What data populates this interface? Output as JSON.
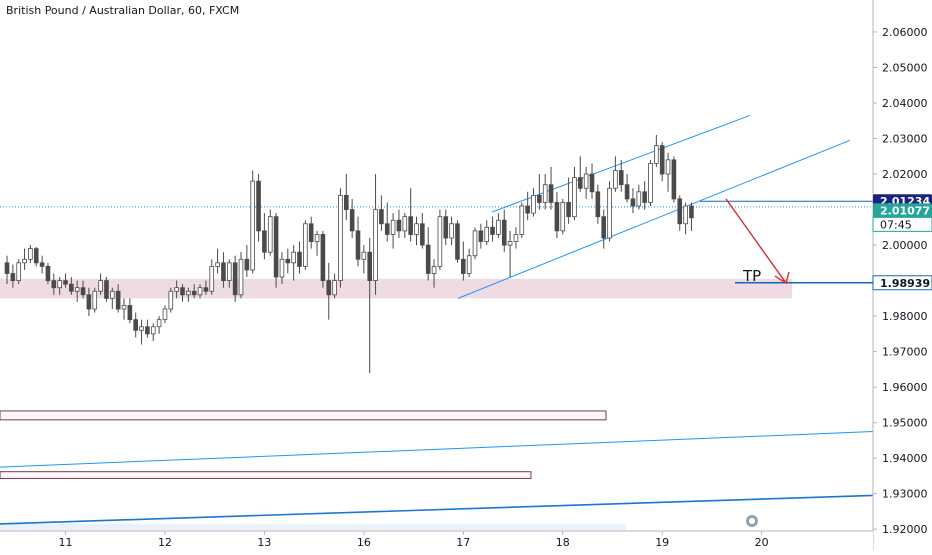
{
  "header": {
    "title": "British Pound / Australian Dollar, 60, FXCM"
  },
  "colors": {
    "up": "#26a69a",
    "down": "#ef5350",
    "candle_body": "#4a4a4a",
    "channel": "#2196f3",
    "support_zone": "#ecd5df",
    "pink_box_border": "#7a3a52",
    "arrow": "#d32f2f",
    "current_line": "#1e88e5",
    "tp_line": "#1565c0",
    "grid": "#eeeeee"
  },
  "labels": {
    "tp_text": "TP",
    "current_price": "2.01234",
    "bid_price": "2.01077",
    "countdown": "07:45",
    "tp_price": "1.98939"
  },
  "chart_data": {
    "type": "candlestick",
    "title": "British Pound / Australian Dollar, 60, FXCM",
    "symbol": "GBPAUD",
    "interval": "60",
    "ylim": [
      1.9195,
      2.069
    ],
    "y_ticks": [
      "2.06000",
      "2.05000",
      "2.04000",
      "2.03000",
      "2.02000",
      "2.01000",
      "2.00000",
      "1.99000",
      "1.98000",
      "1.97000",
      "1.96000",
      "1.95000",
      "1.94000",
      "1.93000",
      "1.92000"
    ],
    "x_ticks": [
      "11",
      "12",
      "13",
      "16",
      "17",
      "18",
      "19",
      "20"
    ],
    "x_tick_index": [
      10,
      27,
      44,
      61,
      78,
      95,
      112,
      129
    ],
    "ohlc": [
      [
        1.995,
        1.997,
        1.989,
        1.992
      ],
      [
        1.992,
        1.9945,
        1.988,
        1.99
      ],
      [
        1.99,
        1.996,
        1.989,
        1.995
      ],
      [
        1.995,
        1.999,
        1.993,
        1.996
      ],
      [
        1.996,
        2.0,
        1.995,
        1.999
      ],
      [
        1.999,
        1.9995,
        1.994,
        1.995
      ],
      [
        1.995,
        1.997,
        1.992,
        1.994
      ],
      [
        1.994,
        1.995,
        1.989,
        1.99
      ],
      [
        1.99,
        1.992,
        1.986,
        1.988
      ],
      [
        1.988,
        1.991,
        1.986,
        1.99
      ],
      [
        1.99,
        1.992,
        1.988,
        1.989
      ],
      [
        1.989,
        1.991,
        1.986,
        1.987
      ],
      [
        1.987,
        1.99,
        1.984,
        1.988
      ],
      [
        1.988,
        1.99,
        1.985,
        1.986
      ],
      [
        1.986,
        1.988,
        1.98,
        1.982
      ],
      [
        1.982,
        1.988,
        1.981,
        1.987
      ],
      [
        1.987,
        1.992,
        1.986,
        1.99
      ],
      [
        1.99,
        1.991,
        1.984,
        1.985
      ],
      [
        1.985,
        1.988,
        1.982,
        1.987
      ],
      [
        1.987,
        1.989,
        1.981,
        1.982
      ],
      [
        1.982,
        1.985,
        1.979,
        1.983
      ],
      [
        1.983,
        1.985,
        1.978,
        1.979
      ],
      [
        1.979,
        1.981,
        1.974,
        1.976
      ],
      [
        1.976,
        1.979,
        1.972,
        1.977
      ],
      [
        1.977,
        1.979,
        1.974,
        1.975
      ],
      [
        1.975,
        1.978,
        1.973,
        1.977
      ],
      [
        1.977,
        1.98,
        1.975,
        1.979
      ],
      [
        1.979,
        1.983,
        1.978,
        1.982
      ],
      [
        1.982,
        1.988,
        1.981,
        1.987
      ],
      [
        1.987,
        1.99,
        1.985,
        1.988
      ],
      [
        1.988,
        1.989,
        1.984,
        1.986
      ],
      [
        1.986,
        1.988,
        1.984,
        1.987
      ],
      [
        1.987,
        1.989,
        1.985,
        1.986
      ],
      [
        1.986,
        1.989,
        1.985,
        1.988
      ],
      [
        1.988,
        1.99,
        1.986,
        1.987
      ],
      [
        1.987,
        1.996,
        1.986,
        1.994
      ],
      [
        1.994,
        1.999,
        1.992,
        1.995
      ],
      [
        1.995,
        1.998,
        1.988,
        1.99
      ],
      [
        1.99,
        1.996,
        1.988,
        1.995
      ],
      [
        1.995,
        1.997,
        1.984,
        1.986
      ],
      [
        1.986,
        1.998,
        1.985,
        1.996
      ],
      [
        1.996,
        2.0,
        1.991,
        1.993
      ],
      [
        1.993,
        2.021,
        1.992,
        2.018
      ],
      [
        2.018,
        2.02,
        2.001,
        2.004
      ],
      [
        2.004,
        2.009,
        1.996,
        1.998
      ],
      [
        1.998,
        2.01,
        1.997,
        2.008
      ],
      [
        2.008,
        2.009,
        1.988,
        1.991
      ],
      [
        1.991,
        1.998,
        1.989,
        1.996
      ],
      [
        1.996,
        1.999,
        1.992,
        1.995
      ],
      [
        1.995,
        2.0,
        1.99,
        1.998
      ],
      [
        1.998,
        2.001,
        1.992,
        1.994
      ],
      [
        1.994,
        2.007,
        1.993,
        2.006
      ],
      [
        2.006,
        2.008,
        1.999,
        2.001
      ],
      [
        2.001,
        2.004,
        1.997,
        2.003
      ],
      [
        2.003,
        2.004,
        1.988,
        1.99
      ],
      [
        1.99,
        1.995,
        1.979,
        1.986
      ],
      [
        1.986,
        1.992,
        1.985,
        1.99
      ],
      [
        1.99,
        2.016,
        1.988,
        2.014
      ],
      [
        2.014,
        2.02,
        2.007,
        2.01
      ],
      [
        2.01,
        2.013,
        2.002,
        2.004
      ],
      [
        2.004,
        2.008,
        1.994,
        1.996
      ],
      [
        1.996,
        2.0,
        1.992,
        1.998
      ],
      [
        1.998,
        2.002,
        1.964,
        1.99
      ],
      [
        1.99,
        2.02,
        1.986,
        2.01
      ],
      [
        2.01,
        2.014,
        2.004,
        2.006
      ],
      [
        2.006,
        2.012,
        2.001,
        2.003
      ],
      [
        2.003,
        2.009,
        1.999,
        2.007
      ],
      [
        2.007,
        2.01,
        2.002,
        2.004
      ],
      [
        2.004,
        2.009,
        2.002,
        2.008
      ],
      [
        2.008,
        2.016,
        2.001,
        2.003
      ],
      [
        2.003,
        2.008,
        2.0,
        2.006
      ],
      [
        2.006,
        2.009,
        1.999,
        2.0
      ],
      [
        2.0,
        2.005,
        1.99,
        1.992
      ],
      [
        1.992,
        1.996,
        1.988,
        1.994
      ],
      [
        1.994,
        2.01,
        1.993,
        2.008
      ],
      [
        2.008,
        2.01,
        2.0,
        2.002
      ],
      [
        2.002,
        2.008,
        2.0,
        2.006
      ],
      [
        2.006,
        2.007,
        1.995,
        1.996
      ],
      [
        1.996,
        2.001,
        1.99,
        1.992
      ],
      [
        1.992,
        1.999,
        1.991,
        1.997
      ],
      [
        1.997,
        2.005,
        1.996,
        2.004
      ],
      [
        2.004,
        2.006,
        1.999,
        2.001
      ],
      [
        2.001,
        2.007,
        2.0,
        2.005
      ],
      [
        2.005,
        2.008,
        2.001,
        2.003
      ],
      [
        2.003,
        2.009,
        2.002,
        2.007
      ],
      [
        2.007,
        2.01,
        1.998,
        2.0
      ],
      [
        2.0,
        2.004,
        1.991,
        2.001
      ],
      [
        2.001,
        2.005,
        1.999,
        2.003
      ],
      [
        2.003,
        2.012,
        2.002,
        2.011
      ],
      [
        2.011,
        2.015,
        2.007,
        2.009
      ],
      [
        2.009,
        2.016,
        2.008,
        2.014
      ],
      [
        2.014,
        2.02,
        2.01,
        2.012
      ],
      [
        2.012,
        2.02,
        2.01,
        2.017
      ],
      [
        2.017,
        2.022,
        2.01,
        2.012
      ],
      [
        2.012,
        2.015,
        2.002,
        2.004
      ],
      [
        2.004,
        2.013,
        2.003,
        2.012
      ],
      [
        2.012,
        2.019,
        2.006,
        2.008
      ],
      [
        2.008,
        2.022,
        2.007,
        2.019
      ],
      [
        2.019,
        2.025,
        2.015,
        2.016
      ],
      [
        2.016,
        2.022,
        2.013,
        2.02
      ],
      [
        2.02,
        2.023,
        2.013,
        2.015
      ],
      [
        2.015,
        2.017,
        2.006,
        2.008
      ],
      [
        2.008,
        2.01,
        1.999,
        2.002
      ],
      [
        2.002,
        2.018,
        2.001,
        2.016
      ],
      [
        2.016,
        2.025,
        2.015,
        2.021
      ],
      [
        2.021,
        2.024,
        2.015,
        2.017
      ],
      [
        2.017,
        2.02,
        2.012,
        2.013
      ],
      [
        2.013,
        2.016,
        2.009,
        2.011
      ],
      [
        2.011,
        2.017,
        2.01,
        2.015
      ],
      [
        2.015,
        2.018,
        2.01,
        2.012
      ],
      [
        2.012,
        2.024,
        2.011,
        2.023
      ],
      [
        2.023,
        2.031,
        2.022,
        2.028
      ],
      [
        2.028,
        2.029,
        2.018,
        2.02
      ],
      [
        2.02,
        2.026,
        2.015,
        2.024
      ],
      [
        2.024,
        2.025,
        2.012,
        2.013
      ],
      [
        2.013,
        2.014,
        2.004,
        2.006
      ],
      [
        2.006,
        2.012,
        2.003,
        2.011
      ],
      [
        2.011,
        2.012,
        2.004,
        2.0077
      ]
    ]
  }
}
